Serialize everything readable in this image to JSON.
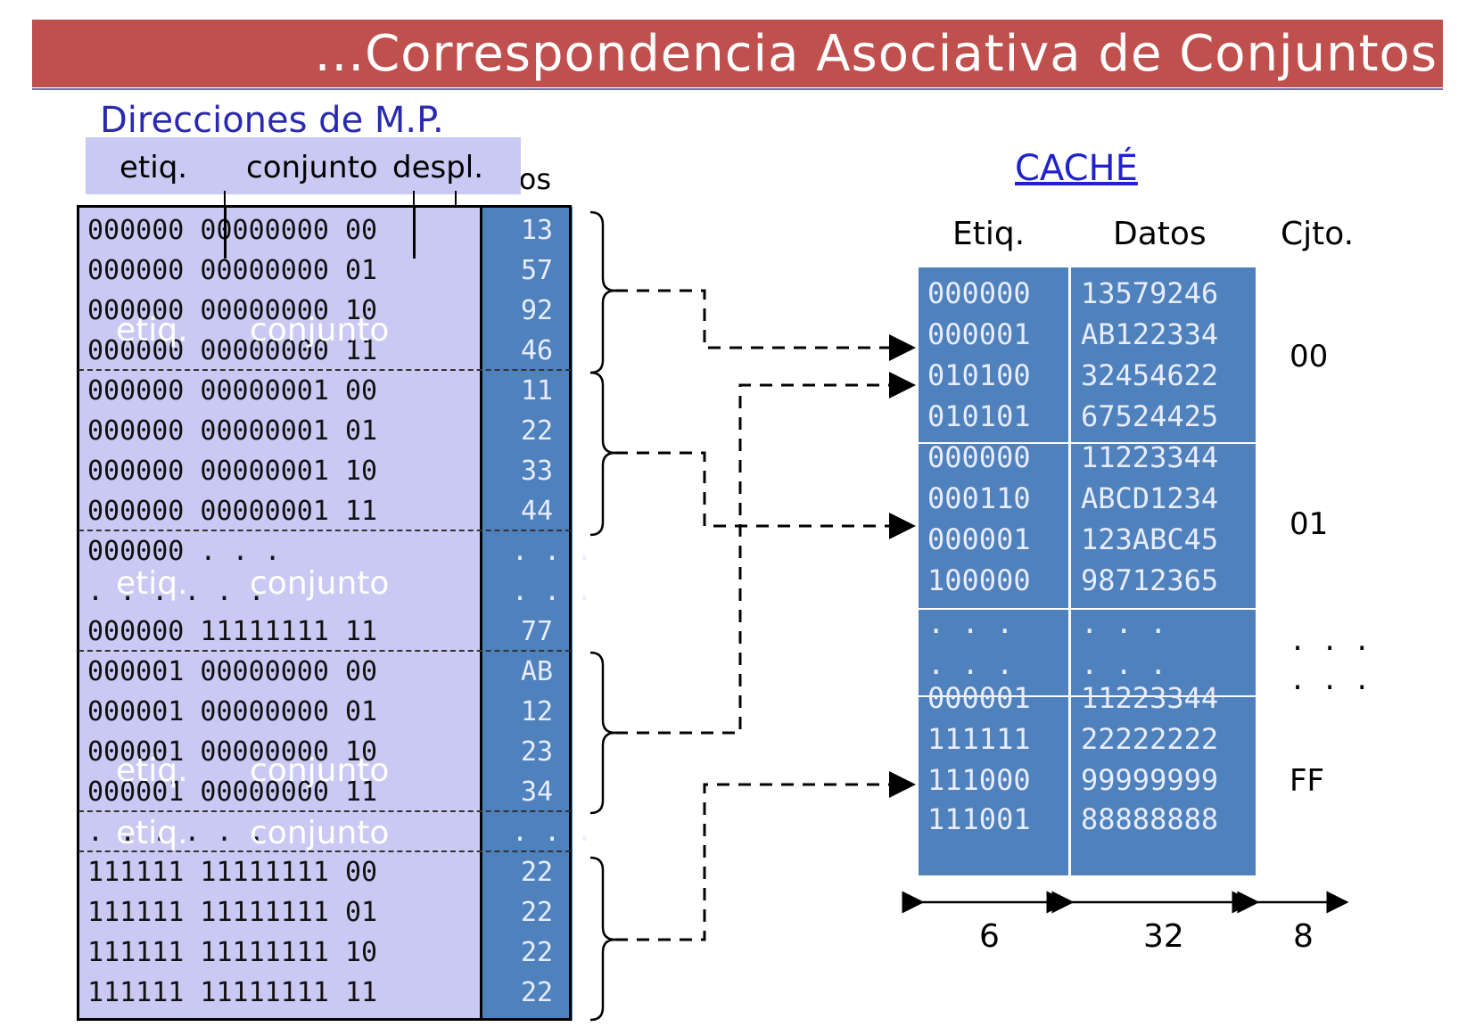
{
  "title": "...Correspondencia Asociativa de Conjuntos",
  "memory": {
    "title": "Direcciones de M.P.",
    "header": {
      "etiq": "etiq.",
      "conjunto": "conjunto",
      "despl": "despl.",
      "datos": "Datos"
    },
    "rows": [
      {
        "address": "000000 00000000 00",
        "data": "13"
      },
      {
        "address": "000000 00000000 01",
        "data": "57"
      },
      {
        "address": "000000 00000000 10",
        "data": "92"
      },
      {
        "address": "000000 00000000 11",
        "data": "46"
      },
      {
        "address": "000000 00000001 00",
        "data": "11"
      },
      {
        "address": "000000 00000001 01",
        "data": "22"
      },
      {
        "address": "000000 00000001 10",
        "data": "33"
      },
      {
        "address": "000000 00000001 11",
        "data": "44"
      },
      {
        "address": "000000    . . .",
        "data": ". . ."
      },
      {
        "address": ". . .      . . .",
        "data": ". . ."
      },
      {
        "address": "000000 11111111 11",
        "data": "77"
      },
      {
        "address": "000001 00000000 00",
        "data": "AB"
      },
      {
        "address": "000001 00000000 01",
        "data": "12"
      },
      {
        "address": "000001 00000000 10",
        "data": "23"
      },
      {
        "address": "000001 00000000 11",
        "data": "34"
      },
      {
        "address": ". . .      . . .",
        "data": ". . ."
      },
      {
        "address": "111111 11111111 00",
        "data": "22"
      },
      {
        "address": "111111 11111111 01",
        "data": "22"
      },
      {
        "address": "111111 11111111 10",
        "data": "22"
      },
      {
        "address": "111111 11111111 11",
        "data": "22"
      }
    ],
    "ghost_labels": {
      "etiq": "etiq.",
      "conjunto": "conjunto"
    }
  },
  "cache": {
    "title": "CACHÉ",
    "headers": {
      "etiq": "Etiq.",
      "datos": "Datos",
      "cjto": "Cjto."
    },
    "rows": [
      {
        "tag": "000000",
        "data": "13579246"
      },
      {
        "tag": "000001",
        "data": "AB122334"
      },
      {
        "tag": "010100",
        "data": "32454622"
      },
      {
        "tag": "010101",
        "data": "67524425"
      },
      {
        "tag": "000000",
        "data": "11223344"
      },
      {
        "tag": "000110",
        "data": "ABCD1234"
      },
      {
        "tag": "000001",
        "data": "123ABC45"
      },
      {
        "tag": "100000",
        "data": "98712365"
      },
      {
        "tag": ". . .",
        "data": ". . ."
      },
      {
        "tag": ". . .",
        "data": ". . ."
      },
      {
        "tag": "000001",
        "data": "11223344"
      },
      {
        "tag": "111111",
        "data": "22222222"
      },
      {
        "tag": "111000",
        "data": "99999999"
      },
      {
        "tag": "111001",
        "data": "88888888"
      }
    ],
    "sets": [
      "00",
      "01",
      ". . .",
      ". . .",
      "FF"
    ],
    "widths": {
      "tag": "6",
      "data": "32",
      "set": "8"
    }
  },
  "colors": {
    "title_bar": "#c0504d",
    "memory_bg": "#c9c9f4",
    "data_bg": "#4f81bd",
    "link_title": "#2222cc"
  }
}
